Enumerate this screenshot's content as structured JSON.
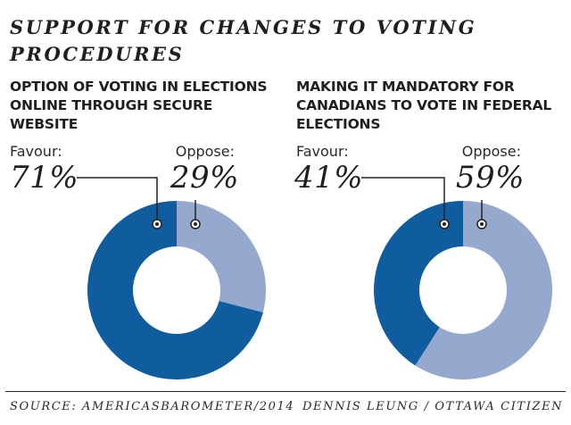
{
  "header": {
    "title": "SUPPORT FOR CHANGES TO VOTING PROCEDURES"
  },
  "colors": {
    "favour": "#0f5c9e",
    "oppose": "#95a9cf",
    "hole": "#ffffff",
    "text": "#1f1f1f"
  },
  "chart_data": [
    {
      "type": "pie",
      "title": "OPTION OF VOTING IN ELECTIONS ONLINE THROUGH SECURE WEBSITE",
      "favour_label": "Favour:",
      "favour_value_text": "71%",
      "oppose_label": "Oppose:",
      "oppose_value_text": "29%",
      "categories": [
        "Favour",
        "Oppose"
      ],
      "values": [
        71,
        29
      ]
    },
    {
      "type": "pie",
      "title": "MAKING IT MANDATORY FOR CANADIANS TO VOTE IN FEDERAL ELECTIONS",
      "favour_label": "Favour:",
      "favour_value_text": "41%",
      "oppose_label": "Oppose:",
      "oppose_value_text": "59%",
      "categories": [
        "Favour",
        "Oppose"
      ],
      "values": [
        41,
        59
      ]
    }
  ],
  "footer": {
    "source": "SOURCE: AMERICASBAROMETER/2014",
    "credit": "DENNIS LEUNG / OTTAWA CITIZEN"
  }
}
